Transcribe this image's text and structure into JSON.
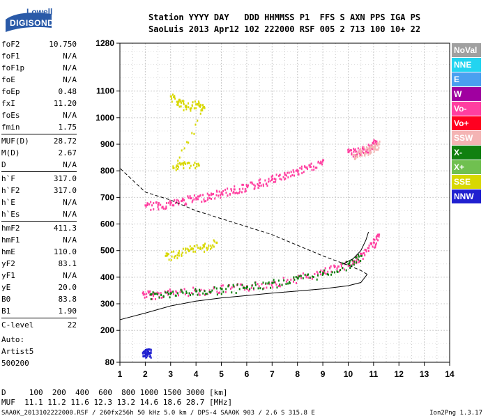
{
  "logo": {
    "line1": "Lowell",
    "line2": "DIGISONDE"
  },
  "header": {
    "line1": "Station YYYY DAY   DDD HHMMSS P1  FFS S AXN PPS IGA PS",
    "line2": "SaoLuis 2013 Apr12 102 222000 RSF 005 2 713 100 10+ 22"
  },
  "params_groups": [
    [
      [
        "foF2",
        "10.750"
      ],
      [
        "foF1",
        "N/A"
      ],
      [
        "foF1p",
        "N/A"
      ],
      [
        "foE",
        "N/A"
      ],
      [
        "foEp",
        "0.48"
      ],
      [
        "fxI",
        "11.20"
      ],
      [
        "foEs",
        "N/A"
      ],
      [
        "fmin",
        "1.75"
      ]
    ],
    [
      [
        "MUF(D)",
        "28.72"
      ],
      [
        "M(D)",
        "2.67"
      ],
      [
        "D",
        "N/A"
      ]
    ],
    [
      [
        "h`F",
        "317.0"
      ],
      [
        "h`F2",
        "317.0"
      ],
      [
        "h`E",
        "N/A"
      ],
      [
        "h`Es",
        "N/A"
      ]
    ],
    [
      [
        "hmF2",
        "411.3"
      ],
      [
        "hmF1",
        "N/A"
      ],
      [
        "hmE",
        "110.0"
      ],
      [
        "yF2",
        "83.1"
      ],
      [
        "yF1",
        "N/A"
      ],
      [
        "yE",
        "20.0"
      ],
      [
        "B0",
        "83.8"
      ],
      [
        "B1",
        "1.90"
      ]
    ],
    [
      [
        "C-level",
        "22"
      ]
    ]
  ],
  "auto": {
    "line1": "Auto:",
    "line2": "Artist5",
    "line3": "500200"
  },
  "footer": {
    "d_line": "D     100  200  400  600  800 1000 1500 3000 [km]",
    "muf_line": "MUF  11.1 11.2 11.6 12.3 13.2 14.6 18.6 28.7 [MHz]",
    "file_line": "SAA0K_2013102222000.RSF / 260fx256h 50 kHz 5.0 km / DPS-4 SAA0K 903 / 2.6 S 315.8 E",
    "version": "Ion2Png 1.3.17"
  },
  "legend": [
    {
      "label": "NoVal",
      "color": "#a0a0a0"
    },
    {
      "label": "NNE",
      "color": "#22d4f0"
    },
    {
      "label": "E",
      "color": "#4aa0f0"
    },
    {
      "label": "W",
      "color": "#a000a0"
    },
    {
      "label": "Vo-",
      "color": "#ff3fa0"
    },
    {
      "label": "Vo+",
      "color": "#ff0020"
    },
    {
      "label": "SSW",
      "color": "#f4b4b4"
    },
    {
      "label": "X-",
      "color": "#108010"
    },
    {
      "label": "X+",
      "color": "#70c050"
    },
    {
      "label": "SSE",
      "color": "#d8d800"
    },
    {
      "label": "NNW",
      "color": "#2020d0"
    }
  ],
  "chart_data": {
    "type": "scatter",
    "xlim": [
      1,
      14
    ],
    "ylim": [
      80,
      1280
    ],
    "xticks": [
      1,
      2,
      3,
      4,
      5,
      6,
      7,
      8,
      9,
      10,
      11,
      12,
      13,
      14
    ],
    "yticks": [
      80,
      200,
      300,
      400,
      500,
      600,
      700,
      800,
      900,
      1000,
      1100,
      1280
    ],
    "grid": true,
    "legend_position": "right",
    "traces": [
      {
        "name": "O-trace",
        "color": "#ff3fa0",
        "x": [
          1.9,
          2.3,
          3,
          4,
          5,
          6,
          7,
          8,
          9,
          9.6,
          10.2,
          10.6,
          11.0,
          11.2
        ],
        "y": [
          340,
          335,
          345,
          350,
          357,
          366,
          380,
          398,
          420,
          440,
          460,
          490,
          530,
          560
        ]
      },
      {
        "name": "X-trace",
        "color": "#108010",
        "x": [
          2.2,
          3,
          4,
          5,
          6,
          7,
          8,
          9,
          10,
          10.5
        ],
        "y": [
          335,
          340,
          347,
          355,
          364,
          378,
          395,
          415,
          450,
          480
        ]
      },
      {
        "name": "2-hop",
        "color": "#ff3fa0",
        "x": [
          2.0,
          2.5,
          3,
          3.5,
          4,
          4.5,
          5,
          5.5,
          6,
          6.5,
          7,
          7.5,
          8,
          8.5,
          9
        ],
        "y": [
          670,
          672,
          680,
          690,
          698,
          708,
          718,
          730,
          742,
          755,
          770,
          785,
          800,
          815,
          840
        ]
      },
      {
        "name": "3-hop",
        "color": "#ff3fa0",
        "x": [
          10,
          10.3,
          10.6,
          10.9,
          11.1
        ],
        "y": [
          870,
          872,
          880,
          895,
          910
        ]
      },
      {
        "name": "spread",
        "color": "#d8d800",
        "x": [
          3.0,
          3.3,
          3.6,
          4.0,
          4.3,
          3.1,
          3.5,
          4.1
        ],
        "y": [
          1080,
          1060,
          1040,
          1050,
          1040,
          810,
          830,
          820
        ]
      },
      {
        "name": "spread",
        "color": "#d8d800",
        "x": [
          2.8,
          3.3,
          3.8,
          4.3,
          4.8
        ],
        "y": [
          480,
          490,
          505,
          515,
          530
        ]
      },
      {
        "name": "NNW",
        "color": "#2020d0",
        "x": [
          1.9,
          2.0,
          2.1,
          2.2
        ],
        "y": [
          115,
          117,
          118,
          115
        ]
      },
      {
        "name": "SSW",
        "color": "#f4b4b4",
        "x": [
          10.2,
          10.5,
          10.8,
          11.0,
          11.2
        ],
        "y": [
          860,
          875,
          880,
          890,
          900
        ]
      }
    ],
    "profile": {
      "x": [
        1.0,
        2.0,
        3.0,
        4.0,
        5.0,
        6.0,
        7.0,
        8.0,
        9.0,
        10.0,
        10.5,
        10.75,
        10.5,
        10.0,
        9.0,
        8.0,
        7.0,
        6.0,
        5.0,
        4.0,
        3.0,
        2.0,
        1.0
      ],
      "y": [
        240,
        265,
        292,
        310,
        322,
        331,
        340,
        348,
        356,
        368,
        380,
        411,
        425,
        445,
        480,
        520,
        560,
        590,
        620,
        650,
        690,
        720,
        810
      ]
    },
    "virtual_height_curve": {
      "x": [
        9.8,
        10.2,
        10.5,
        10.7,
        10.8
      ],
      "y": [
        450,
        470,
        500,
        540,
        570
      ]
    }
  }
}
